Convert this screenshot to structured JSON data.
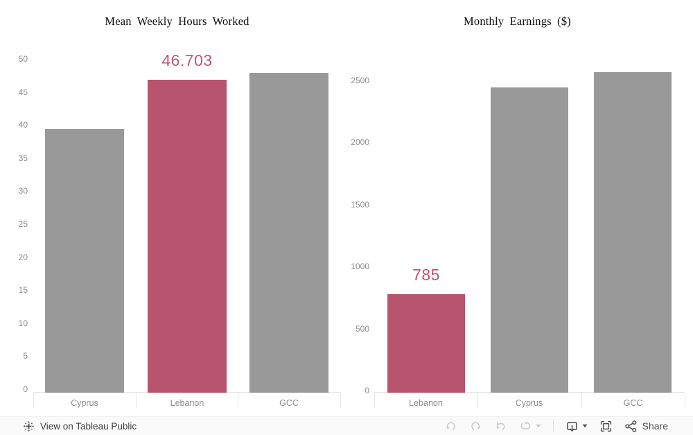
{
  "chart_data": [
    {
      "type": "bar",
      "title": "Mean Weekly Hours Worked",
      "categories": [
        "Cyprus",
        "Lebanon",
        "GCC"
      ],
      "values": [
        39.4,
        46.703,
        47.8
      ],
      "highlight_index": 1,
      "highlight_category": "Lebanon",
      "data_label": "46.703",
      "xlabel": "",
      "ylabel": "",
      "ylim": [
        0,
        50
      ],
      "yticks": [
        0,
        5,
        10,
        15,
        20,
        25,
        30,
        35,
        40,
        45,
        50
      ],
      "grid": false,
      "legend": false
    },
    {
      "type": "bar",
      "title": "Monthly Earnings ($)",
      "categories": [
        "Lebanon",
        "Cyprus",
        "GCC"
      ],
      "values": [
        785,
        2440,
        2560
      ],
      "highlight_index": 0,
      "highlight_category": "Lebanon",
      "data_label": "785",
      "xlabel": "",
      "ylabel": "",
      "ylim": [
        0,
        2800
      ],
      "yticks": [
        0,
        500,
        1000,
        1500,
        2000,
        2500
      ],
      "grid": false,
      "legend": false
    }
  ],
  "colors": {
    "highlight_bar": "#b95470",
    "default_bar": "#999999",
    "value_label": "#c05573",
    "axis_text": "#8c8c8c"
  },
  "footer": {
    "view_link": "View on Tableau Public",
    "share_label": "Share",
    "icons": [
      "tableau-logo-icon",
      "undo-icon",
      "redo-icon",
      "reset-icon",
      "replay-icon",
      "caret-down-icon",
      "download-icon",
      "fullscreen-icon",
      "share-icon"
    ]
  }
}
